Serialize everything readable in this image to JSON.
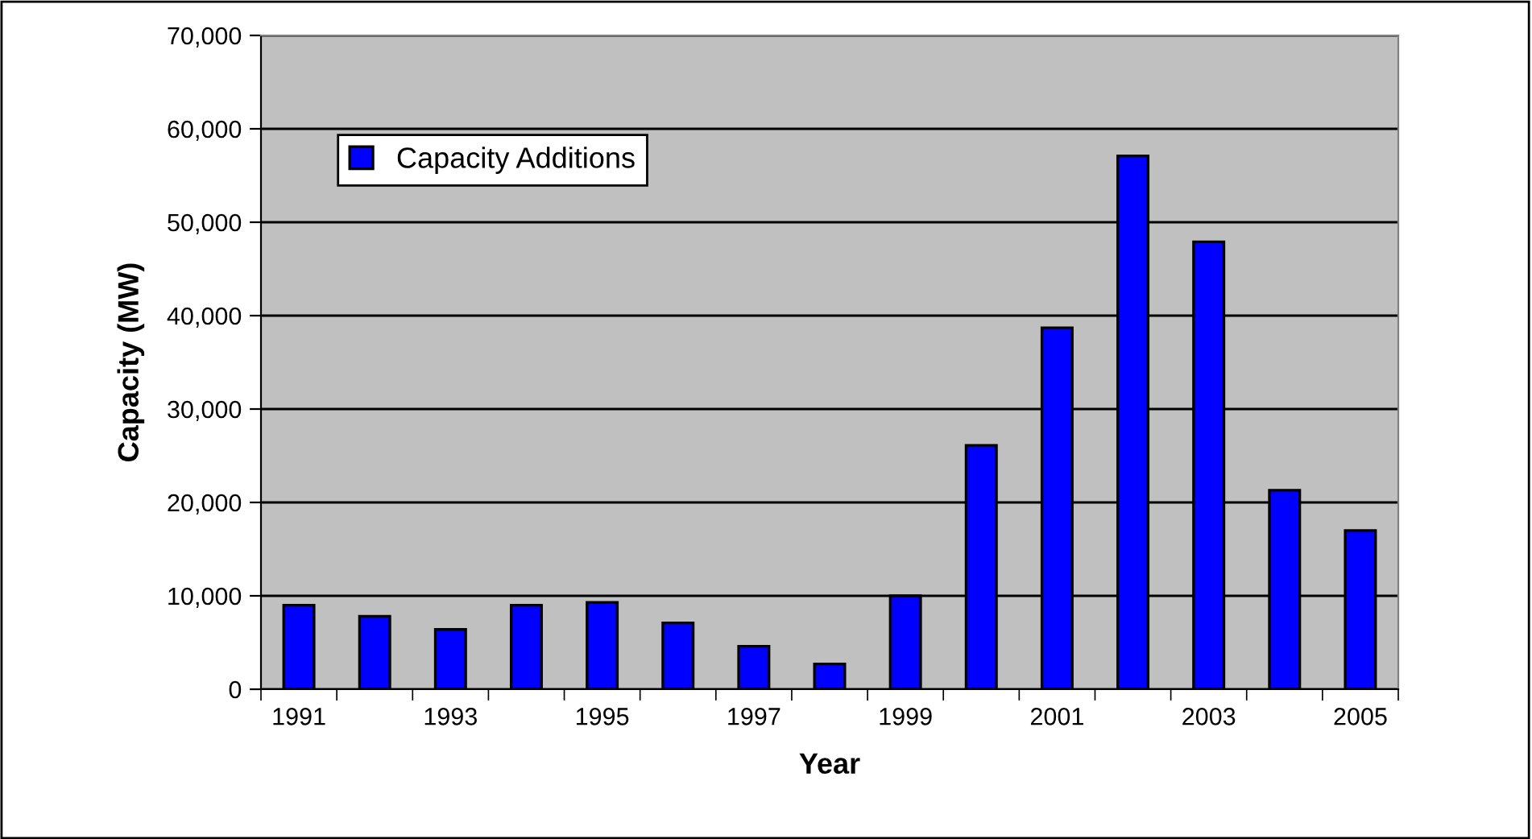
{
  "chart_data": {
    "type": "bar",
    "xlabel": "Year",
    "ylabel": "Capacity (MW)",
    "categories": [
      "1991",
      null,
      "1993",
      null,
      "1995",
      null,
      "1997",
      null,
      "1999",
      null,
      "2001",
      null,
      "2003",
      null,
      "2005"
    ],
    "series": [
      {
        "name": "Capacity Additions",
        "color": "#0000ff",
        "values": [
          9000,
          7800,
          6400,
          9000,
          9300,
          7100,
          4600,
          2700,
          10000,
          26100,
          38700,
          57100,
          47900,
          21300,
          17000
        ]
      }
    ],
    "ylim": [
      0,
      70000
    ],
    "yticks": [
      {
        "value": 0,
        "label": "0"
      },
      {
        "value": 10000,
        "label": "10,000"
      },
      {
        "value": 20000,
        "label": "20,000"
      },
      {
        "value": 30000,
        "label": "30,000"
      },
      {
        "value": 40000,
        "label": "40,000"
      },
      {
        "value": 50000,
        "label": "50,000"
      },
      {
        "value": 60000,
        "label": "60,000"
      },
      {
        "value": 70000,
        "label": "70,000"
      }
    ],
    "grid": "y",
    "legend": "top left"
  }
}
